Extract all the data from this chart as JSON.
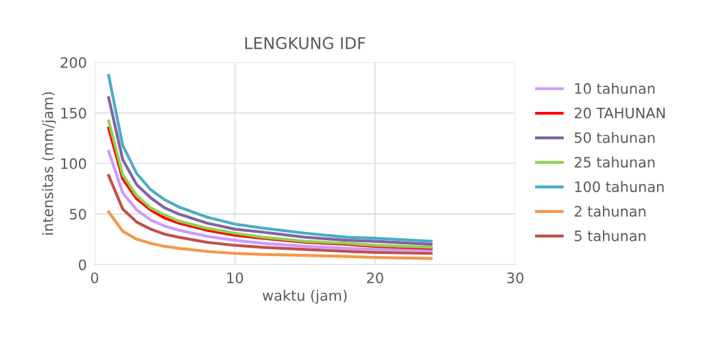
{
  "chart_data": {
    "type": "line",
    "title": "LENGKUNG IDF",
    "xlabel": "waktu (jam)",
    "ylabel": "intensitas (mm/jam)",
    "x": [
      1,
      2,
      3,
      4,
      5,
      6,
      8,
      10,
      12,
      15,
      18,
      20,
      24
    ],
    "series": [
      {
        "name": "10 tahunan",
        "color": "#cc99ff",
        "values": [
          112,
          71,
          54,
          44,
          38,
          34,
          28,
          24,
          21,
          18,
          16,
          15,
          14
        ]
      },
      {
        "name": "20 TAHUNAN",
        "color": "#ff0000",
        "values": [
          135,
          85,
          65,
          54,
          46,
          41,
          34,
          29,
          26,
          22,
          20,
          18,
          16
        ]
      },
      {
        "name": "50 tahunan",
        "color": "#8064a2",
        "values": [
          165,
          104,
          79,
          66,
          56,
          50,
          41,
          35,
          32,
          27,
          24,
          23,
          20
        ]
      },
      {
        "name": "25 tahunan",
        "color": "#92d050",
        "values": [
          142,
          89,
          68,
          56,
          49,
          43,
          36,
          31,
          27,
          23,
          21,
          19,
          17
        ]
      },
      {
        "name": "100 tahunan",
        "color": "#4bacc6",
        "values": [
          187,
          118,
          90,
          74,
          64,
          57,
          47,
          40,
          36,
          31,
          27,
          26,
          23
        ]
      },
      {
        "name": "2 tahunan",
        "color": "#f79646",
        "values": [
          52,
          33,
          25,
          21,
          18,
          16,
          13,
          11,
          10,
          9,
          8,
          7,
          6
        ]
      },
      {
        "name": "5 tahunan",
        "color": "#c0504d",
        "values": [
          88,
          55,
          42,
          35,
          30,
          27,
          22,
          19,
          17,
          15,
          13,
          12,
          11
        ]
      }
    ],
    "xlim": [
      0,
      30
    ],
    "xticks": [
      0,
      10,
      20,
      30
    ],
    "ylim": [
      0,
      200
    ],
    "yticks": [
      0,
      50,
      100,
      150,
      200
    ],
    "grid": true,
    "legend": "right",
    "marker": "none",
    "line_style": "solid"
  }
}
